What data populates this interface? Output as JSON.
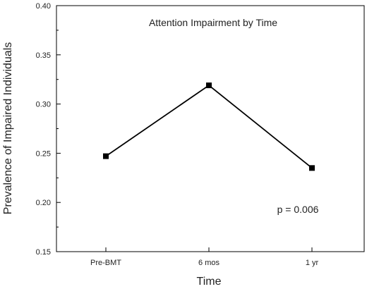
{
  "chart_data": {
    "type": "line",
    "title": "Attention Impairment by Time",
    "xlabel": "Time",
    "ylabel": "Prevalence of Impaired Individuals",
    "categories": [
      "Pre-BMT",
      "6 mos",
      "1 yr"
    ],
    "series": [
      {
        "values": [
          0.247,
          0.319,
          0.235
        ]
      }
    ],
    "ylim": [
      0.15,
      0.4
    ],
    "yticks": [
      0.15,
      0.2,
      0.25,
      0.3,
      0.35,
      0.4
    ],
    "ytick_labels": [
      "0.15",
      "0.20",
      "0.25",
      "0.30",
      "0.35",
      "0.40"
    ],
    "grid": false,
    "annotation": "p = 0.006",
    "colors": {
      "line": "#000000",
      "marker": "#000000",
      "axis": "#000000"
    }
  }
}
